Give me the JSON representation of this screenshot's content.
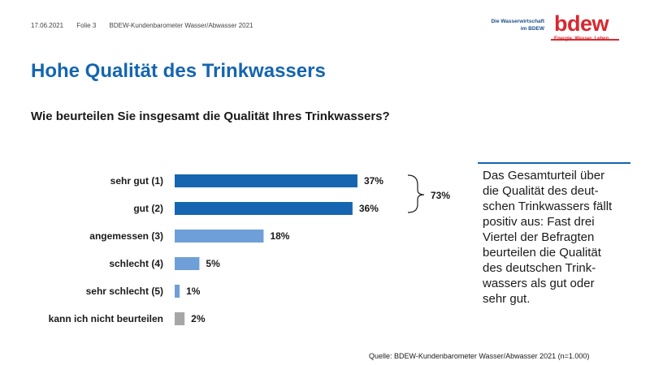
{
  "header": {
    "date": "17.06.2021",
    "slide": "Folie 3",
    "study": "BDEW-Kundenbarometer  Wasser/Abwasser 2021",
    "brand_line1": "Die Wasserwirtschaft",
    "brand_line2": "im BDEW",
    "logo_word": "bdew",
    "logo_tagline": "Energie. Wasser. Leben."
  },
  "title": "Hohe Qualität des Trinkwassers",
  "question": "Wie beurteilen Sie insgesamt die Qualität Ihres Trinkwassers?",
  "chart_data": {
    "type": "bar",
    "orientation": "horizontal",
    "categories": [
      "sehr gut (1)",
      "gut (2)",
      "angemessen (3)",
      "schlecht (4)",
      "sehr schlecht (5)",
      "kann ich nicht beurteilen"
    ],
    "values": [
      37,
      36,
      18,
      5,
      1,
      2
    ],
    "value_labels": [
      "37%",
      "36%",
      "18%",
      "5%",
      "1%",
      "2%"
    ],
    "colors": [
      "#1565b0",
      "#1565b0",
      "#6f9fd8",
      "#6f9fd8",
      "#6f9fd8",
      "#a6a6a6"
    ],
    "xlim": [
      0,
      100
    ],
    "grid": false,
    "annotation": {
      "label": "73%",
      "covers": [
        "sehr gut (1)",
        "gut (2)"
      ]
    }
  },
  "note": "Das Gesamturteil über\ndie Qualität des deut-\nschen Trinkwassers fällt\npositiv aus: Fast drei\nViertel der Befragten\nbeurteilen die Qualität\ndes deutschen Trink-\nwassers als gut oder\nsehr gut.",
  "source": "Quelle: BDEW-Kundenbarometer Wasser/Abwasser 2021 (n=1.000)"
}
